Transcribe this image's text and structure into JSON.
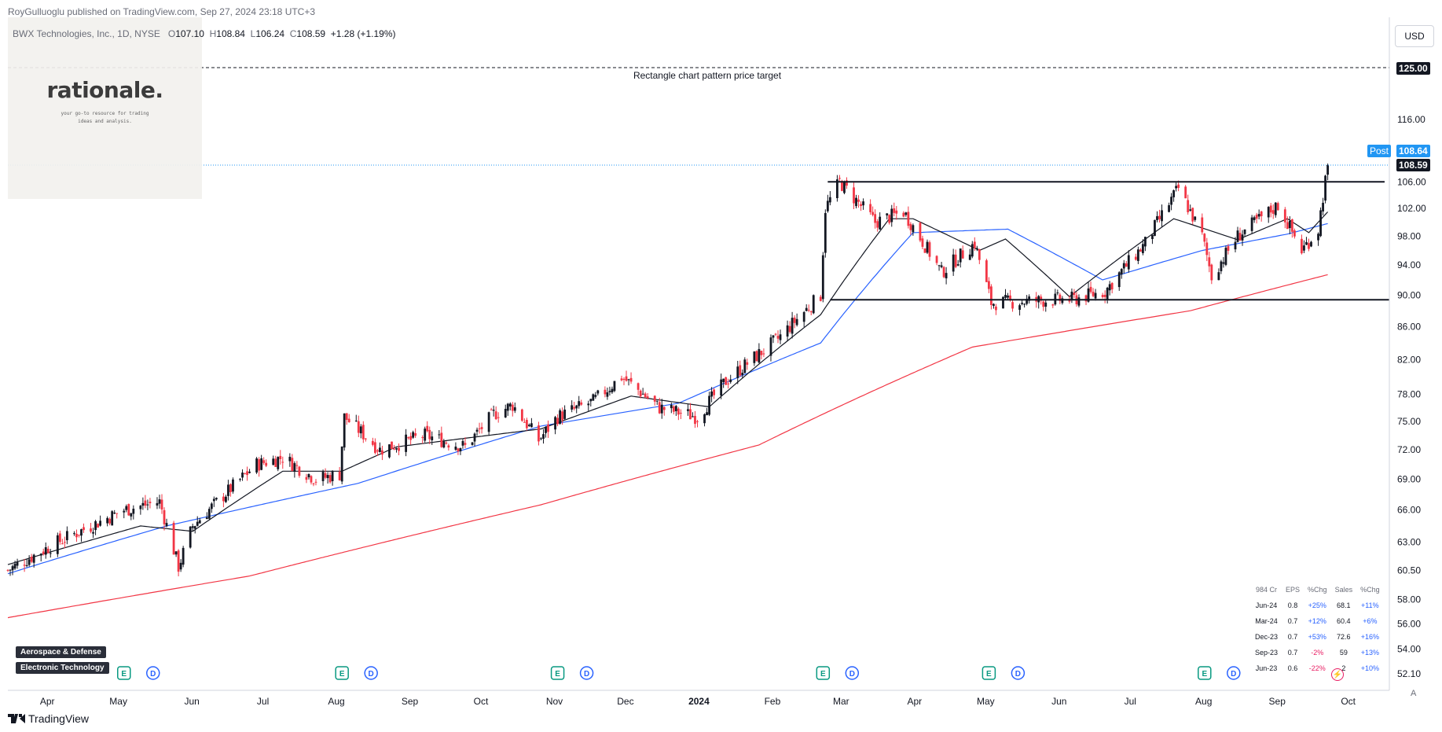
{
  "header": {
    "publisher": "RoyGulluoglu published on TradingView.com, Sep 27, 2024 23:18 UTC+3",
    "symbol": "BWX Technologies, Inc., 1D, NYSE",
    "o_label": "O",
    "o": "107.10",
    "h_label": "H",
    "h": "108.84",
    "l_label": "L",
    "l": "106.24",
    "c_label": "C",
    "c": "108.59",
    "change": "+1.28 (+1.19%)"
  },
  "logo": {
    "title": "rationale.",
    "subtitle": "your go-to resource for trading ideas and analysis."
  },
  "currency": "USD",
  "annotation": "Rectangle chart pattern price target",
  "price_tags": {
    "target": "125.00",
    "post_label": "Post",
    "post": "108.64",
    "last": "108.59"
  },
  "sectors": [
    "Aerospace & Defense",
    "Electronic Technology"
  ],
  "earnings": {
    "headers": [
      "984 Cr",
      "EPS",
      "%Chg",
      "Sales",
      "%Chg"
    ],
    "rows": [
      [
        "Jun-24",
        "0.8",
        "+25%",
        "68.1",
        "+11%"
      ],
      [
        "Mar-24",
        "0.7",
        "+12%",
        "60.4",
        "+6%"
      ],
      [
        "Dec-23",
        "0.7",
        "+53%",
        "72.6",
        "+16%"
      ],
      [
        "Sep-23",
        "0.7",
        "-2%",
        "59",
        "+13%"
      ],
      [
        "Jun-23",
        "0.6",
        "-22%",
        "2",
        "+10%"
      ]
    ]
  },
  "events": {
    "e_label": "E",
    "d_label": "D",
    "dates": [
      "2023-05-08",
      "2023-08-08",
      "2023-11-07",
      "2024-02-27",
      "2024-05-07",
      "2024-08-06"
    ]
  },
  "footer": "TradingView",
  "colors": {
    "up": "#131722",
    "down": "#f23645",
    "sma20": "#131722",
    "sma50": "#2962ff",
    "sma200": "#f23645",
    "post": "#2196f3"
  },
  "chart_data": {
    "type": "candlestick",
    "ticker": "BWX Technologies, Inc., 1D, NYSE",
    "price_scale": "log",
    "y_ticks": [
      52.1,
      54.0,
      56.0,
      58.0,
      60.5,
      63.0,
      66.0,
      69.0,
      72.0,
      75.0,
      78.0,
      82.0,
      86.0,
      90.0,
      94.0,
      98.0,
      102.0,
      106.0,
      116.0,
      125.0
    ],
    "x_ticks": [
      "Apr",
      "May",
      "Jun",
      "Jul",
      "Aug",
      "Sep",
      "Oct",
      "Nov",
      "Dec",
      "2024",
      "Feb",
      "Mar",
      "Apr",
      "May",
      "Jun",
      "Jul",
      "Aug",
      "Sep",
      "Oct"
    ],
    "x_range": [
      "2023-03-20",
      "2024-10-23"
    ],
    "anchors": [
      [
        "2023-03-20",
        60.5
      ],
      [
        "2023-04-10",
        63.0
      ],
      [
        "2023-05-08",
        66.0
      ],
      [
        "2023-05-23",
        66.8
      ],
      [
        "2023-05-31",
        60.8
      ],
      [
        "2023-06-06",
        64.5
      ],
      [
        "2023-07-03",
        70.5
      ],
      [
        "2023-07-14",
        71.2
      ],
      [
        "2023-07-28",
        69.0
      ],
      [
        "2023-08-07",
        69.5
      ],
      [
        "2023-08-09",
        75.5
      ],
      [
        "2023-08-24",
        72.0
      ],
      [
        "2023-09-12",
        73.5
      ],
      [
        "2023-09-29",
        72.3
      ],
      [
        "2023-10-11",
        75.8
      ],
      [
        "2023-10-19",
        76.8
      ],
      [
        "2023-10-30",
        73.0
      ],
      [
        "2023-11-07",
        75.5
      ],
      [
        "2023-11-22",
        77.2
      ],
      [
        "2023-12-04",
        80.0
      ],
      [
        "2023-12-20",
        76.5
      ],
      [
        "2024-01-05",
        75.5
      ],
      [
        "2024-01-17",
        79.5
      ],
      [
        "2024-02-08",
        84.5
      ],
      [
        "2024-02-26",
        90.0
      ],
      [
        "2024-02-28",
        102.0
      ],
      [
        "2024-03-05",
        106.0
      ],
      [
        "2024-03-20",
        100.0
      ],
      [
        "2024-04-01",
        101.5
      ],
      [
        "2024-04-17",
        93.0
      ],
      [
        "2024-05-01",
        97.0
      ],
      [
        "2024-05-08",
        89.0
      ],
      [
        "2024-06-12",
        89.5
      ],
      [
        "2024-06-25",
        90.5
      ],
      [
        "2024-07-12",
        97.0
      ],
      [
        "2024-07-26",
        105.0
      ],
      [
        "2024-08-05",
        98.0
      ],
      [
        "2024-08-09",
        92.5
      ],
      [
        "2024-08-20",
        98.0
      ],
      [
        "2024-09-06",
        102.5
      ],
      [
        "2024-09-16",
        96.0
      ],
      [
        "2024-09-23",
        99.0
      ],
      [
        "2024-09-27",
        108.59
      ]
    ],
    "sma20": [
      [
        "2023-03-20",
        61.0
      ],
      [
        "2023-05-15",
        64.5
      ],
      [
        "2023-06-06",
        64.0
      ],
      [
        "2023-07-14",
        69.8
      ],
      [
        "2023-08-08",
        69.8
      ],
      [
        "2023-08-31",
        72.3
      ],
      [
        "2023-10-31",
        74.2
      ],
      [
        "2023-12-08",
        77.8
      ],
      [
        "2024-01-10",
        76.6
      ],
      [
        "2024-02-26",
        87.5
      ],
      [
        "2024-03-26",
        100.5
      ],
      [
        "2024-04-05",
        100.5
      ],
      [
        "2024-05-03",
        96.0
      ],
      [
        "2024-05-14",
        97.6
      ],
      [
        "2024-06-10",
        89.8
      ],
      [
        "2024-07-24",
        100.5
      ],
      [
        "2024-08-20",
        97.5
      ],
      [
        "2024-09-10",
        100.5
      ],
      [
        "2024-09-19",
        98.5
      ],
      [
        "2024-09-27",
        101.5
      ]
    ],
    "sma50": [
      [
        "2023-03-20",
        60.2
      ],
      [
        "2023-05-26",
        64.5
      ],
      [
        "2023-08-15",
        68.6
      ],
      [
        "2023-10-31",
        74.5
      ],
      [
        "2023-12-28",
        77.0
      ],
      [
        "2024-02-26",
        84.0
      ],
      [
        "2024-04-05",
        98.5
      ],
      [
        "2024-05-15",
        99.0
      ],
      [
        "2024-06-24",
        92.0
      ],
      [
        "2024-08-05",
        96.0
      ],
      [
        "2024-09-10",
        98.3
      ],
      [
        "2024-09-27",
        99.8
      ]
    ],
    "sma200": [
      [
        "2023-03-20",
        56.5
      ],
      [
        "2023-06-30",
        60.0
      ],
      [
        "2023-10-31",
        66.5
      ],
      [
        "2024-01-31",
        72.5
      ],
      [
        "2024-04-30",
        83.5
      ],
      [
        "2024-07-31",
        88.0
      ],
      [
        "2024-09-27",
        92.7
      ]
    ],
    "levels": [
      {
        "name": "rectangle-top",
        "value": 106.0,
        "from": "2024-02-29",
        "to": "2024-10-21"
      },
      {
        "name": "rectangle-bottom",
        "value": 89.4,
        "from": "2024-03-01",
        "to": "2024-10-23"
      },
      {
        "name": "price-target",
        "value": 125.0,
        "from": "2023-03-20",
        "to": "2024-10-23",
        "style": "dashed"
      },
      {
        "name": "last-price",
        "value": 108.59,
        "from": "2023-03-20",
        "to": "2024-10-23",
        "style": "dotted"
      }
    ]
  }
}
